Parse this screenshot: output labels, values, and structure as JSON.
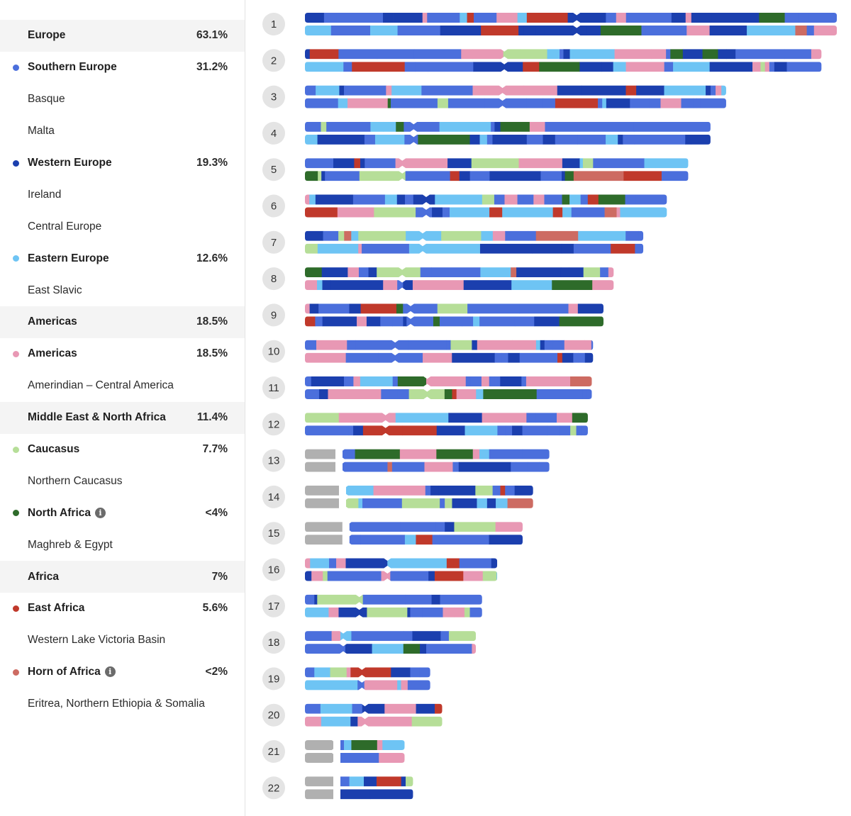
{
  "legend": [
    {
      "type": "category",
      "label": "Europe",
      "pct": "63.1%"
    },
    {
      "type": "region",
      "label": "Southern Europe",
      "pct": "31.2%",
      "color": "#4b6fdc"
    },
    {
      "type": "sub",
      "label": "Basque"
    },
    {
      "type": "sub",
      "label": "Malta"
    },
    {
      "type": "region",
      "label": "Western Europe",
      "pct": "19.3%",
      "color": "#1b3fae"
    },
    {
      "type": "sub",
      "label": "Ireland"
    },
    {
      "type": "sub",
      "label": "Central Europe"
    },
    {
      "type": "region",
      "label": "Eastern Europe",
      "pct": "12.6%",
      "color": "#6ec4f4"
    },
    {
      "type": "sub",
      "label": "East Slavic"
    },
    {
      "type": "category",
      "label": "Americas",
      "pct": "18.5%"
    },
    {
      "type": "region",
      "label": "Americas",
      "pct": "18.5%",
      "color": "#e898b4"
    },
    {
      "type": "sub",
      "label": "Amerindian – Central America"
    },
    {
      "type": "category",
      "label": "Middle East & North Africa",
      "pct": "11.4%"
    },
    {
      "type": "region",
      "label": "Caucasus",
      "pct": "7.7%",
      "color": "#b6de98"
    },
    {
      "type": "sub",
      "label": "Northern Caucasus"
    },
    {
      "type": "region",
      "label": "North Africa",
      "pct": "<4%",
      "color": "#2e6b2a",
      "info": true
    },
    {
      "type": "sub",
      "label": "Maghreb & Egypt"
    },
    {
      "type": "category",
      "label": "Africa",
      "pct": "7%"
    },
    {
      "type": "region",
      "label": "East Africa",
      "pct": "5.6%",
      "color": "#c0392b"
    },
    {
      "type": "sub",
      "label": "Western Lake Victoria Basin"
    },
    {
      "type": "region",
      "label": "Horn of Africa",
      "pct": "<2%",
      "color": "#cd6b62",
      "info": true
    },
    {
      "type": "sub",
      "label": "Eritrea, Northern Ethiopia & Somalia"
    }
  ],
  "info_glyph": "i",
  "colors": {
    "southern_europe": "#4b6fdc",
    "western_europe": "#1b3fae",
    "eastern_europe": "#6ec4f4",
    "americas": "#e898b4",
    "caucasus": "#b6de98",
    "north_africa": "#2e6b2a",
    "east_africa": "#c0392b",
    "horn_of_africa": "#cd6b62",
    "unassigned": "#b0b0b0"
  },
  "chromosomes": [
    {
      "label": "1",
      "length": 1.0,
      "centromere": 0.511
    },
    {
      "label": "2",
      "length": 0.9711,
      "centromere": 0.386
    },
    {
      "label": "3",
      "length": 0.7919,
      "centromere": 0.469
    },
    {
      "label": "4",
      "length": 0.7625,
      "centromere": 0.268
    },
    {
      "label": "5",
      "length": 0.7206,
      "centromere": 0.254
    },
    {
      "label": "6",
      "length": 0.6804,
      "centromere": 0.335
    },
    {
      "label": "7",
      "length": 0.6361,
      "centromere": 0.348
    },
    {
      "label": "8",
      "length": 0.5804,
      "centromere": 0.315
    },
    {
      "label": "9",
      "length": 0.5613,
      "centromere": 0.354
    },
    {
      "label": "10",
      "length": 0.5417,
      "centromere": 0.313
    },
    {
      "label": "11",
      "length": 0.5393,
      "centromere": 0.426
    },
    {
      "label": "12",
      "length": 0.5319,
      "centromere": 0.285
    },
    {
      "label": "13",
      "length": 0.4595,
      "centromere": 0.148
    },
    {
      "label": "14",
      "length": 0.4289,
      "centromere": 0.174
    },
    {
      "label": "15",
      "length": 0.4093,
      "centromere": 0.198
    },
    {
      "label": "16",
      "length": 0.3614,
      "centromere": 0.429
    },
    {
      "label": "17",
      "length": 0.333,
      "centromere": 0.307
    },
    {
      "label": "18",
      "length": 0.3213,
      "centromere": 0.224
    },
    {
      "label": "19",
      "length": 0.2355,
      "centromere": 0.455
    },
    {
      "label": "20",
      "length": 0.258,
      "centromere": 0.437
    },
    {
      "label": "21",
      "length": 0.1873,
      "centromere": 0.304
    },
    {
      "label": "22",
      "length": 0.2032,
      "centromere": 0.295
    }
  ]
}
